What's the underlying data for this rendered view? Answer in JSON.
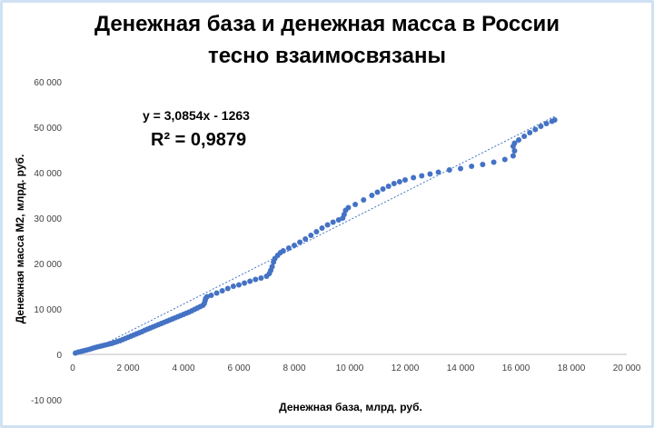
{
  "chart_data": {
    "type": "scatter",
    "title_line1": "Денежная база и денежная масса в России",
    "title_line2": "тесно взаимосвязаны",
    "xlabel": "Денежная база, млрд. руб.",
    "ylabel": "Денежная масса М2, млрд. руб.",
    "xlim": [
      0,
      20000
    ],
    "ylim": [
      -10000,
      60000
    ],
    "x_ticks": [
      0,
      2000,
      4000,
      6000,
      8000,
      10000,
      12000,
      14000,
      16000,
      18000,
      20000
    ],
    "y_ticks": [
      -10000,
      0,
      10000,
      20000,
      30000,
      40000,
      50000,
      60000
    ],
    "x_tick_labels": [
      "0",
      "2 000",
      "4 000",
      "6 000",
      "8 000",
      "10 000",
      "12 000",
      "14 000",
      "16 000",
      "18 000",
      "20 000"
    ],
    "y_tick_labels": [
      "-10 000",
      "0",
      "10 000",
      "20 000",
      "30 000",
      "40 000",
      "50 000",
      "60 000"
    ],
    "grid": false,
    "series_color": "#4472c4",
    "points": [
      [
        100,
        300
      ],
      [
        200,
        500
      ],
      [
        300,
        650
      ],
      [
        400,
        800
      ],
      [
        500,
        950
      ],
      [
        600,
        1100
      ],
      [
        700,
        1300
      ],
      [
        800,
        1500
      ],
      [
        900,
        1650
      ],
      [
        1000,
        1800
      ],
      [
        1100,
        1950
      ],
      [
        1200,
        2100
      ],
      [
        1300,
        2250
      ],
      [
        1400,
        2400
      ],
      [
        1500,
        2600
      ],
      [
        1600,
        2800
      ],
      [
        1700,
        3000
      ],
      [
        1800,
        3250
      ],
      [
        1900,
        3500
      ],
      [
        2000,
        3750
      ],
      [
        2100,
        4000
      ],
      [
        2200,
        4250
      ],
      [
        2300,
        4500
      ],
      [
        2400,
        4750
      ],
      [
        2500,
        5000
      ],
      [
        2600,
        5300
      ],
      [
        2700,
        5550
      ],
      [
        2800,
        5800
      ],
      [
        2900,
        6050
      ],
      [
        3000,
        6300
      ],
      [
        3100,
        6550
      ],
      [
        3200,
        6800
      ],
      [
        3300,
        7050
      ],
      [
        3400,
        7300
      ],
      [
        3500,
        7550
      ],
      [
        3600,
        7800
      ],
      [
        3700,
        8050
      ],
      [
        3800,
        8300
      ],
      [
        3900,
        8550
      ],
      [
        4000,
        8800
      ],
      [
        4100,
        9050
      ],
      [
        4200,
        9300
      ],
      [
        4300,
        9600
      ],
      [
        4400,
        9900
      ],
      [
        4500,
        10200
      ],
      [
        4600,
        10500
      ],
      [
        4700,
        10800
      ],
      [
        4750,
        11200
      ],
      [
        4780,
        11800
      ],
      [
        4800,
        12300
      ],
      [
        4850,
        12700
      ],
      [
        5000,
        13000
      ],
      [
        5200,
        13500
      ],
      [
        5400,
        14000
      ],
      [
        5600,
        14500
      ],
      [
        5800,
        15000
      ],
      [
        6000,
        15300
      ],
      [
        6200,
        15700
      ],
      [
        6400,
        16100
      ],
      [
        6600,
        16500
      ],
      [
        6800,
        16800
      ],
      [
        7000,
        17200
      ],
      [
        7100,
        17800
      ],
      [
        7150,
        18500
      ],
      [
        7200,
        19300
      ],
      [
        7250,
        20300
      ],
      [
        7300,
        21100
      ],
      [
        7400,
        21800
      ],
      [
        7500,
        22400
      ],
      [
        7600,
        22800
      ],
      [
        7800,
        23400
      ],
      [
        8000,
        24000
      ],
      [
        8200,
        24700
      ],
      [
        8400,
        25400
      ],
      [
        8600,
        26200
      ],
      [
        8800,
        27000
      ],
      [
        9000,
        27800
      ],
      [
        9200,
        28500
      ],
      [
        9400,
        29100
      ],
      [
        9600,
        29600
      ],
      [
        9750,
        30000
      ],
      [
        9800,
        30800
      ],
      [
        9850,
        31700
      ],
      [
        9950,
        32300
      ],
      [
        10200,
        33000
      ],
      [
        10500,
        34000
      ],
      [
        10800,
        35000
      ],
      [
        11000,
        35700
      ],
      [
        11200,
        36400
      ],
      [
        11400,
        37000
      ],
      [
        11600,
        37600
      ],
      [
        11800,
        38000
      ],
      [
        12000,
        38400
      ],
      [
        12300,
        38900
      ],
      [
        12600,
        39300
      ],
      [
        12900,
        39700
      ],
      [
        13200,
        40100
      ],
      [
        13600,
        40600
      ],
      [
        14000,
        40900
      ],
      [
        14400,
        41400
      ],
      [
        14800,
        41800
      ],
      [
        15200,
        42300
      ],
      [
        15600,
        42900
      ],
      [
        15900,
        43700
      ],
      [
        15950,
        44800
      ],
      [
        15900,
        45800
      ],
      [
        15950,
        46500
      ],
      [
        16100,
        47200
      ],
      [
        16300,
        48000
      ],
      [
        16500,
        48800
      ],
      [
        16700,
        49500
      ],
      [
        16900,
        50200
      ],
      [
        17100,
        50800
      ],
      [
        17300,
        51300
      ],
      [
        17400,
        51600
      ]
    ],
    "trendline": {
      "type": "linear",
      "slope": 3.0854,
      "intercept": -1263,
      "x_range": [
        1300,
        17400
      ],
      "equation_label": "y = 3,0854x - 1263",
      "r2_label": "R² = 0,9879"
    }
  }
}
